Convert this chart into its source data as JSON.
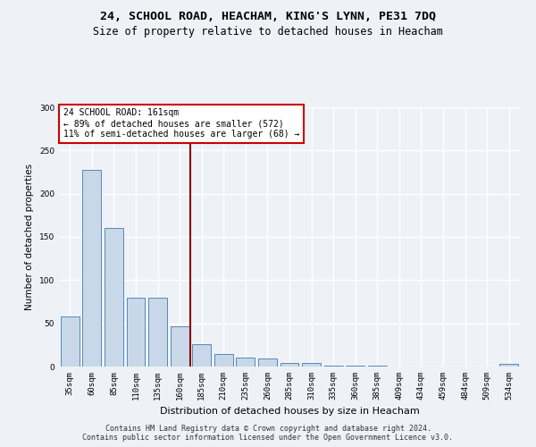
{
  "title1": "24, SCHOOL ROAD, HEACHAM, KING'S LYNN, PE31 7DQ",
  "title2": "Size of property relative to detached houses in Heacham",
  "xlabel": "Distribution of detached houses by size in Heacham",
  "ylabel": "Number of detached properties",
  "bar_color": "#c8d8e8",
  "bar_edge_color": "#5588bb",
  "categories": [
    "35sqm",
    "60sqm",
    "85sqm",
    "110sqm",
    "135sqm",
    "160sqm",
    "185sqm",
    "210sqm",
    "235sqm",
    "260sqm",
    "285sqm",
    "310sqm",
    "335sqm",
    "360sqm",
    "385sqm",
    "409sqm",
    "434sqm",
    "459sqm",
    "484sqm",
    "509sqm",
    "534sqm"
  ],
  "values": [
    58,
    228,
    160,
    80,
    80,
    47,
    26,
    15,
    10,
    9,
    4,
    4,
    1,
    1,
    1,
    0,
    0,
    0,
    0,
    0,
    3
  ],
  "vline_color": "#8b0000",
  "annotation_text": "24 SCHOOL ROAD: 161sqm\n← 89% of detached houses are smaller (572)\n11% of semi-detached houses are larger (68) →",
  "annotation_box_color": "#ffffff",
  "annotation_box_edge": "#cc0000",
  "ylim": [
    0,
    300
  ],
  "yticks": [
    0,
    50,
    100,
    150,
    200,
    250,
    300
  ],
  "footer1": "Contains HM Land Registry data © Crown copyright and database right 2024.",
  "footer2": "Contains public sector information licensed under the Open Government Licence v3.0.",
  "background_color": "#eef2f7",
  "grid_color": "#ffffff",
  "title1_fontsize": 9.5,
  "title2_fontsize": 8.5,
  "tick_fontsize": 6.5,
  "ylabel_fontsize": 7.5,
  "xlabel_fontsize": 8,
  "annotation_fontsize": 7,
  "footer_fontsize": 6
}
